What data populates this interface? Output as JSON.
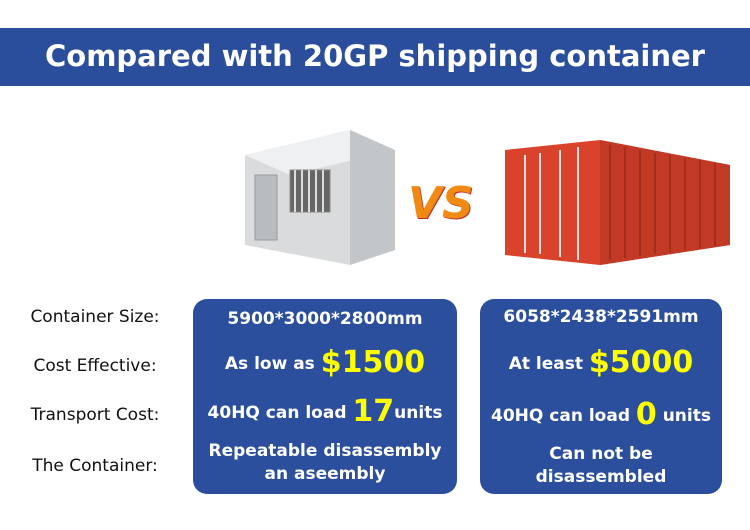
{
  "title": "Compared with 20GP shipping container",
  "labels": [
    "Container Size:",
    "Cost Effective:",
    "Transport Cost:",
    "The Container:"
  ],
  "left": {
    "size": "5900*3000*2800mm",
    "cost_prefix": "As low as ",
    "cost_value": "$1500",
    "transport_prefix": "40HQ can load ",
    "transport_value": "17",
    "transport_suffix": "units",
    "container_line1": "Repeatable disassembly",
    "container_line2": "an aseembly"
  },
  "right": {
    "size": "6058*2438*2591mm",
    "cost_prefix": "At least ",
    "cost_value": "$5000",
    "transport_prefix": "40HQ can load ",
    "transport_value": "0",
    "transport_suffix": " units",
    "container_line1": "Can not be",
    "container_line2": "disassembled"
  },
  "vs": "VS",
  "colors": {
    "brand_blue": "#2b4f9c",
    "highlight": "#ffff00",
    "shipping_container": "#d9432b"
  }
}
